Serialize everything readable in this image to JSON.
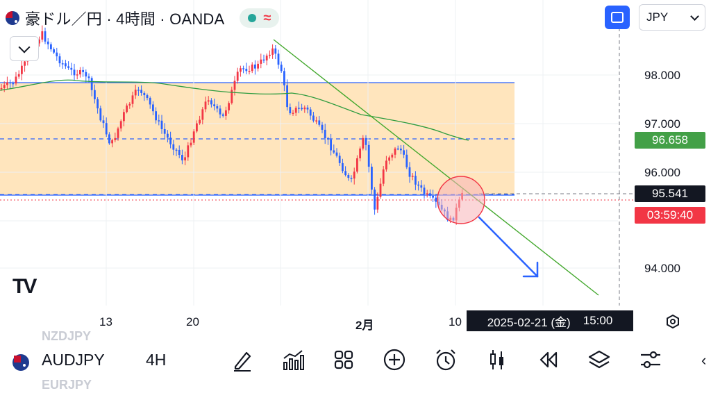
{
  "header": {
    "title": "豪ドル／円 · 4時間 · OANDA",
    "currency_selector": "JPY"
  },
  "price_axis": {
    "labels": [
      "98.000",
      "97.000",
      "96.000",
      "94.000"
    ],
    "ma_tag": "96.658",
    "current_price": "95.541",
    "countdown": "03:59:40"
  },
  "time_axis": {
    "labels": [
      "13",
      "20",
      "2月",
      "10"
    ],
    "crosshair_time": "2025-02-21 (金)",
    "crosshair_hour": "15:00"
  },
  "colors": {
    "up": "#f23645",
    "down": "#2962ff",
    "zone": "#ffe0b2",
    "ma": "#2e9c3f",
    "trendline": "#43a82d",
    "ma_tag": "#43a047",
    "countdown_tag": "#f23645"
  },
  "bottom_bar": {
    "symbol": "AUDJPY",
    "timeframe": "4H",
    "ghost_above": "NZDJPY",
    "ghost_below": "EURJPY",
    "tools": [
      "drawing-tool-icon",
      "indicators-icon",
      "layout-grid-icon",
      "add-icon",
      "alert-clock-icon",
      "candles-icon",
      "replay-icon",
      "layers-icon",
      "settings-sliders-icon"
    ]
  }
}
